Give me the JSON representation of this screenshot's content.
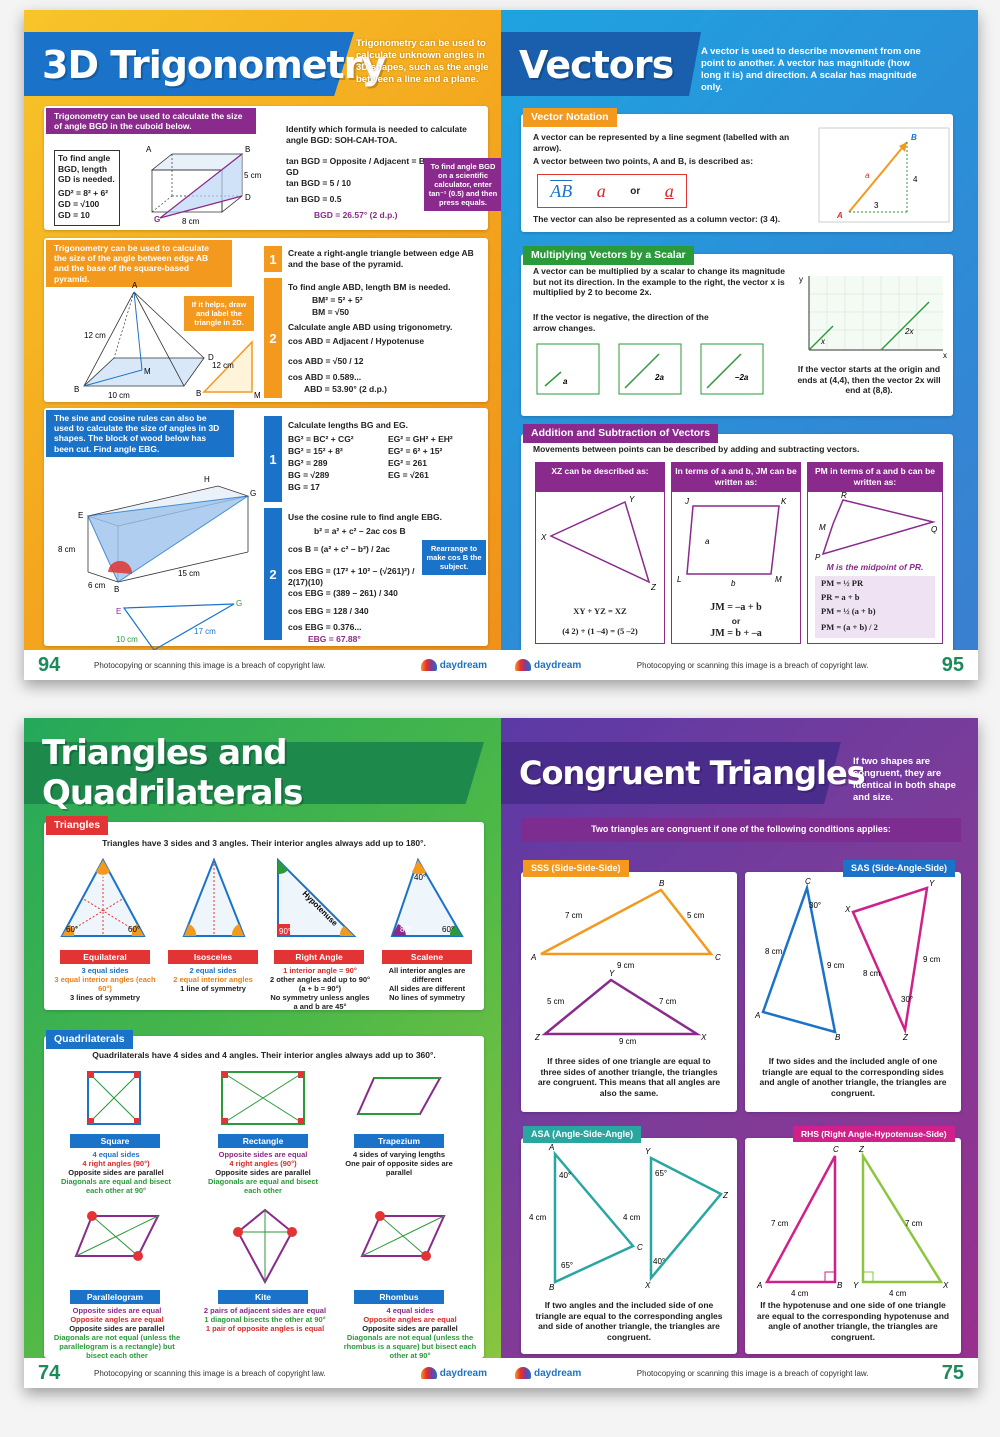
{
  "copyright": "Photocopying or scanning this image is a breach of copyright law.",
  "logo": "daydream",
  "p94": {
    "number": "94",
    "title": "3D Trigonometry",
    "desc": "Trigonometry can be used to calculate unknown angles in 3D shapes, such as the angle between a line and a plane.",
    "s1_header": "Trigonometry can be used to calculate the size of angle BGD in the cuboid below.",
    "s1_box": "To find angle BGD, length GD is needed.",
    "s1_eq1": "GD² = 8² + 6²",
    "s1_eq2": "GD = √100",
    "s1_eq3": "GD = 10",
    "s1_identify": "Identify which formula is needed to calculate angle BGD: SOH-CAH-TOA.",
    "s1_f1": "tan BGD = Opposite / Adjacent = BD / GD",
    "s1_f2": "tan BGD = 5 / 10",
    "s1_f3": "tan BGD = 0.5",
    "s1_f4": "BGD = 26.57° (2 d.p.)",
    "s1_note": "To find angle BGD on a scientific calculator, enter tan⁻¹ (0.5) and then press equals.",
    "s2_header": "Trigonometry can be used to calculate the size of the angle between edge AB and the base of the square-based pyramid.",
    "s2_tip": "If it helps, draw and label the triangle in 2D.",
    "s2_step1": "Create a right-angle triangle between edge AB and the base of the pyramid.",
    "s2_step2a": "To find angle ABD, length BM is needed.",
    "s2_step2b": "BM² = 5² + 5²",
    "s2_step2c": "BM = √50",
    "s2_step2d": "Calculate angle ABD using trigonometry.",
    "s2_step2e": "cos ABD = Adjacent / Hypotenuse",
    "s2_step2f": "cos ABD = √50 / 12",
    "s2_step2g": "cos ABD = 0.589...",
    "s2_step2h": "ABD = 53.90° (2 d.p.)",
    "s3_header": "The sine and cosine rules can also be used to calculate the size of angles in 3D shapes. The block of wood below has been cut. Find angle EBG.",
    "s3_step1": "Calculate lengths BG and EG.",
    "s3_bg1": "BG² = BC² + CG²",
    "s3_bg2": "BG² = 15² + 8²",
    "s3_bg3": "BG² = 289",
    "s3_bg4": "BG = √289",
    "s3_bg5": "BG = 17",
    "s3_eg1": "EG² = GH² + EH²",
    "s3_eg2": "EG² = 6² + 15²",
    "s3_eg3": "EG² = 261",
    "s3_eg4": "EG = √261",
    "s3_step2": "Use the cosine rule to find angle EBG.",
    "s3_c1": "b² = a² + c² – 2ac cos B",
    "s3_c2": "cos B = (a² + c² – b²) / 2ac",
    "s3_c3": "cos EBG = (17² + 10² – (√261)²) / 2(17)(10)",
    "s3_c4": "cos EBG = (389 – 261) / 340",
    "s3_c5": "cos EBG = 128 / 340",
    "s3_c6": "cos EBG = 0.376...",
    "s3_c7": "EBG = 67.88°",
    "s3_note": "Rearrange to make cos B the subject."
  },
  "p95": {
    "number": "95",
    "title": "Vectors",
    "desc": "A vector is used to describe movement from one point to another. A vector has magnitude (how long it is) and direction. A scalar has magnitude only.",
    "notation_label": "Vector Notation",
    "notation_t1": "A vector can be represented by a line segment (labelled with an arrow).",
    "notation_t2": "A vector between two points, A and B, is described as:",
    "notation_t3": "The vector can also be represented as a column vector: (3 4).",
    "notation_ab": "AB",
    "notation_a": "a",
    "notation_or": "or",
    "multiply_label": "Multiplying Vectors by a Scalar",
    "multiply_t1": "A vector can be multiplied by a scalar to change its magnitude but not its direction. In the example to the right, the vector x is multiplied by 2 to become 2x.",
    "multiply_t2": "If the vector is negative, the direction of the arrow changes.",
    "multiply_origin": "If the vector starts at the origin and ends at (4,4), then the vector 2x will end at (8,8).",
    "mult_a": "a",
    "mult_2a": "2a",
    "mult_neg2a": "–2a",
    "addsub_label": "Addition and Subtraction of Vectors",
    "addsub_t1": "Movements between points can be described by adding and subtracting vectors.",
    "col1_head": "XZ can be described as:",
    "col2_head": "In terms of a and b, JM can be written as:",
    "col3_head": "PM in terms of a and b can be written as:",
    "col1_eq1": "XY + YZ = XZ",
    "col1_eq2": "(4 2) + (1 –4) = (5 –2)",
    "col2_eq1": "JM = –a + b",
    "col2_eq2": "or",
    "col2_eq3": "JM = b + –a",
    "col3_mid": "M is the midpoint of PR.",
    "col3_eq1": "PM = ½ PR",
    "col3_eq2": "PR = a + b",
    "col3_eq3": "PM = ½ (a + b)",
    "col3_eq4": "PM = (a + b) / 2"
  },
  "p74": {
    "number": "74",
    "title": "Triangles and Quadrilaterals",
    "tri_label": "Triangles",
    "tri_intro": "Triangles have 3 sides and 3 angles. Their interior angles always add up to 180°.",
    "tri": [
      {
        "name": "Equilateral",
        "l1": "3 equal sides",
        "l2": "3 equal interior angles (each 60°)",
        "l3": "3 lines of symmetry"
      },
      {
        "name": "Isosceles",
        "l1": "2 equal sides",
        "l2": "2 equal interior angles",
        "l3": "1 line of symmetry"
      },
      {
        "name": "Right Angle",
        "l1": "1 interior angle = 90°",
        "l2": "2 other angles add up to 90° (a + b = 90°)",
        "l3": "No symmetry unless angles a and b are 45°"
      },
      {
        "name": "Scalene",
        "l1": "All interior angles are different",
        "l2": "All sides are different",
        "l3": "No lines of symmetry"
      }
    ],
    "quad_label": "Quadrilaterals",
    "quad_intro": "Quadrilaterals have 4 sides and 4 angles. Their interior angles always add up to 360°.",
    "quad": [
      {
        "name": "Square",
        "l1": "4 equal sides",
        "l2": "4 right angles (90°)",
        "l3": "Opposite sides are parallel",
        "l4": "Diagonals are equal and bisect each other at 90°"
      },
      {
        "name": "Rectangle",
        "l1": "Opposite sides are equal",
        "l2": "4 right angles (90°)",
        "l3": "Opposite sides are parallel",
        "l4": "Diagonals are equal and bisect each other"
      },
      {
        "name": "Trapezium",
        "l1": "4 sides of varying lengths",
        "l2": "One pair of opposite sides are parallel",
        "l3": "",
        "l4": ""
      },
      {
        "name": "Parallelogram",
        "l1": "Opposite sides are equal",
        "l2": "Opposite angles are equal",
        "l3": "Opposite sides are parallel",
        "l4": "Diagonals are not equal (unless the parallelogram is a rectangle) but bisect each other"
      },
      {
        "name": "Kite",
        "l1": "2 pairs of adjacent sides are equal",
        "l2": "1 diagonal bisects the other at 90°",
        "l3": "1 pair of opposite angles is equal",
        "l4": ""
      },
      {
        "name": "Rhombus",
        "l1": "4 equal sides",
        "l2": "Opposite angles are equal",
        "l3": "Opposite sides are parallel",
        "l4": "Diagonals are not equal (unless the rhombus is a square) but bisect each other at 90°"
      }
    ],
    "hyp": "Hypotenuse",
    "deg60": "60°",
    "deg90": "90°",
    "deg40": "40°",
    "deg80": "80°"
  },
  "p75": {
    "number": "75",
    "title": "Congruent Triangles",
    "desc": "If two shapes are congruent, they are identical in both shape and size.",
    "banner": "Two triangles are congruent if one of the following conditions applies:",
    "sss_label": "SSS (Side-Side-Side)",
    "sss_text": "If three sides of one triangle are equal to three sides of another triangle, the triangles are congruent. This means that all angles are also the same.",
    "sas_label": "SAS (Side-Angle-Side)",
    "sas_text": "If two sides and the included angle of one triangle are equal to the corresponding sides and angle of another triangle, the triangles are congruent.",
    "asa_label": "ASA (Angle-Side-Angle)",
    "asa_text": "If two angles and the included side of one triangle are equal to the corresponding angles and side of another triangle, the triangles are congruent.",
    "rhs_label": "RHS (Right Angle-Hypotenuse-Side)",
    "rhs_text": "If the hypotenuse and one side of one triangle are equal to the corresponding hypotenuse and angle of another triangle, the triangles are congruent.",
    "cm7": "7 cm",
    "cm5": "5 cm",
    "cm9": "9 cm",
    "cm8": "8 cm",
    "cm4": "4 cm",
    "d30": "30°",
    "d40": "40°",
    "d65": "65°"
  }
}
